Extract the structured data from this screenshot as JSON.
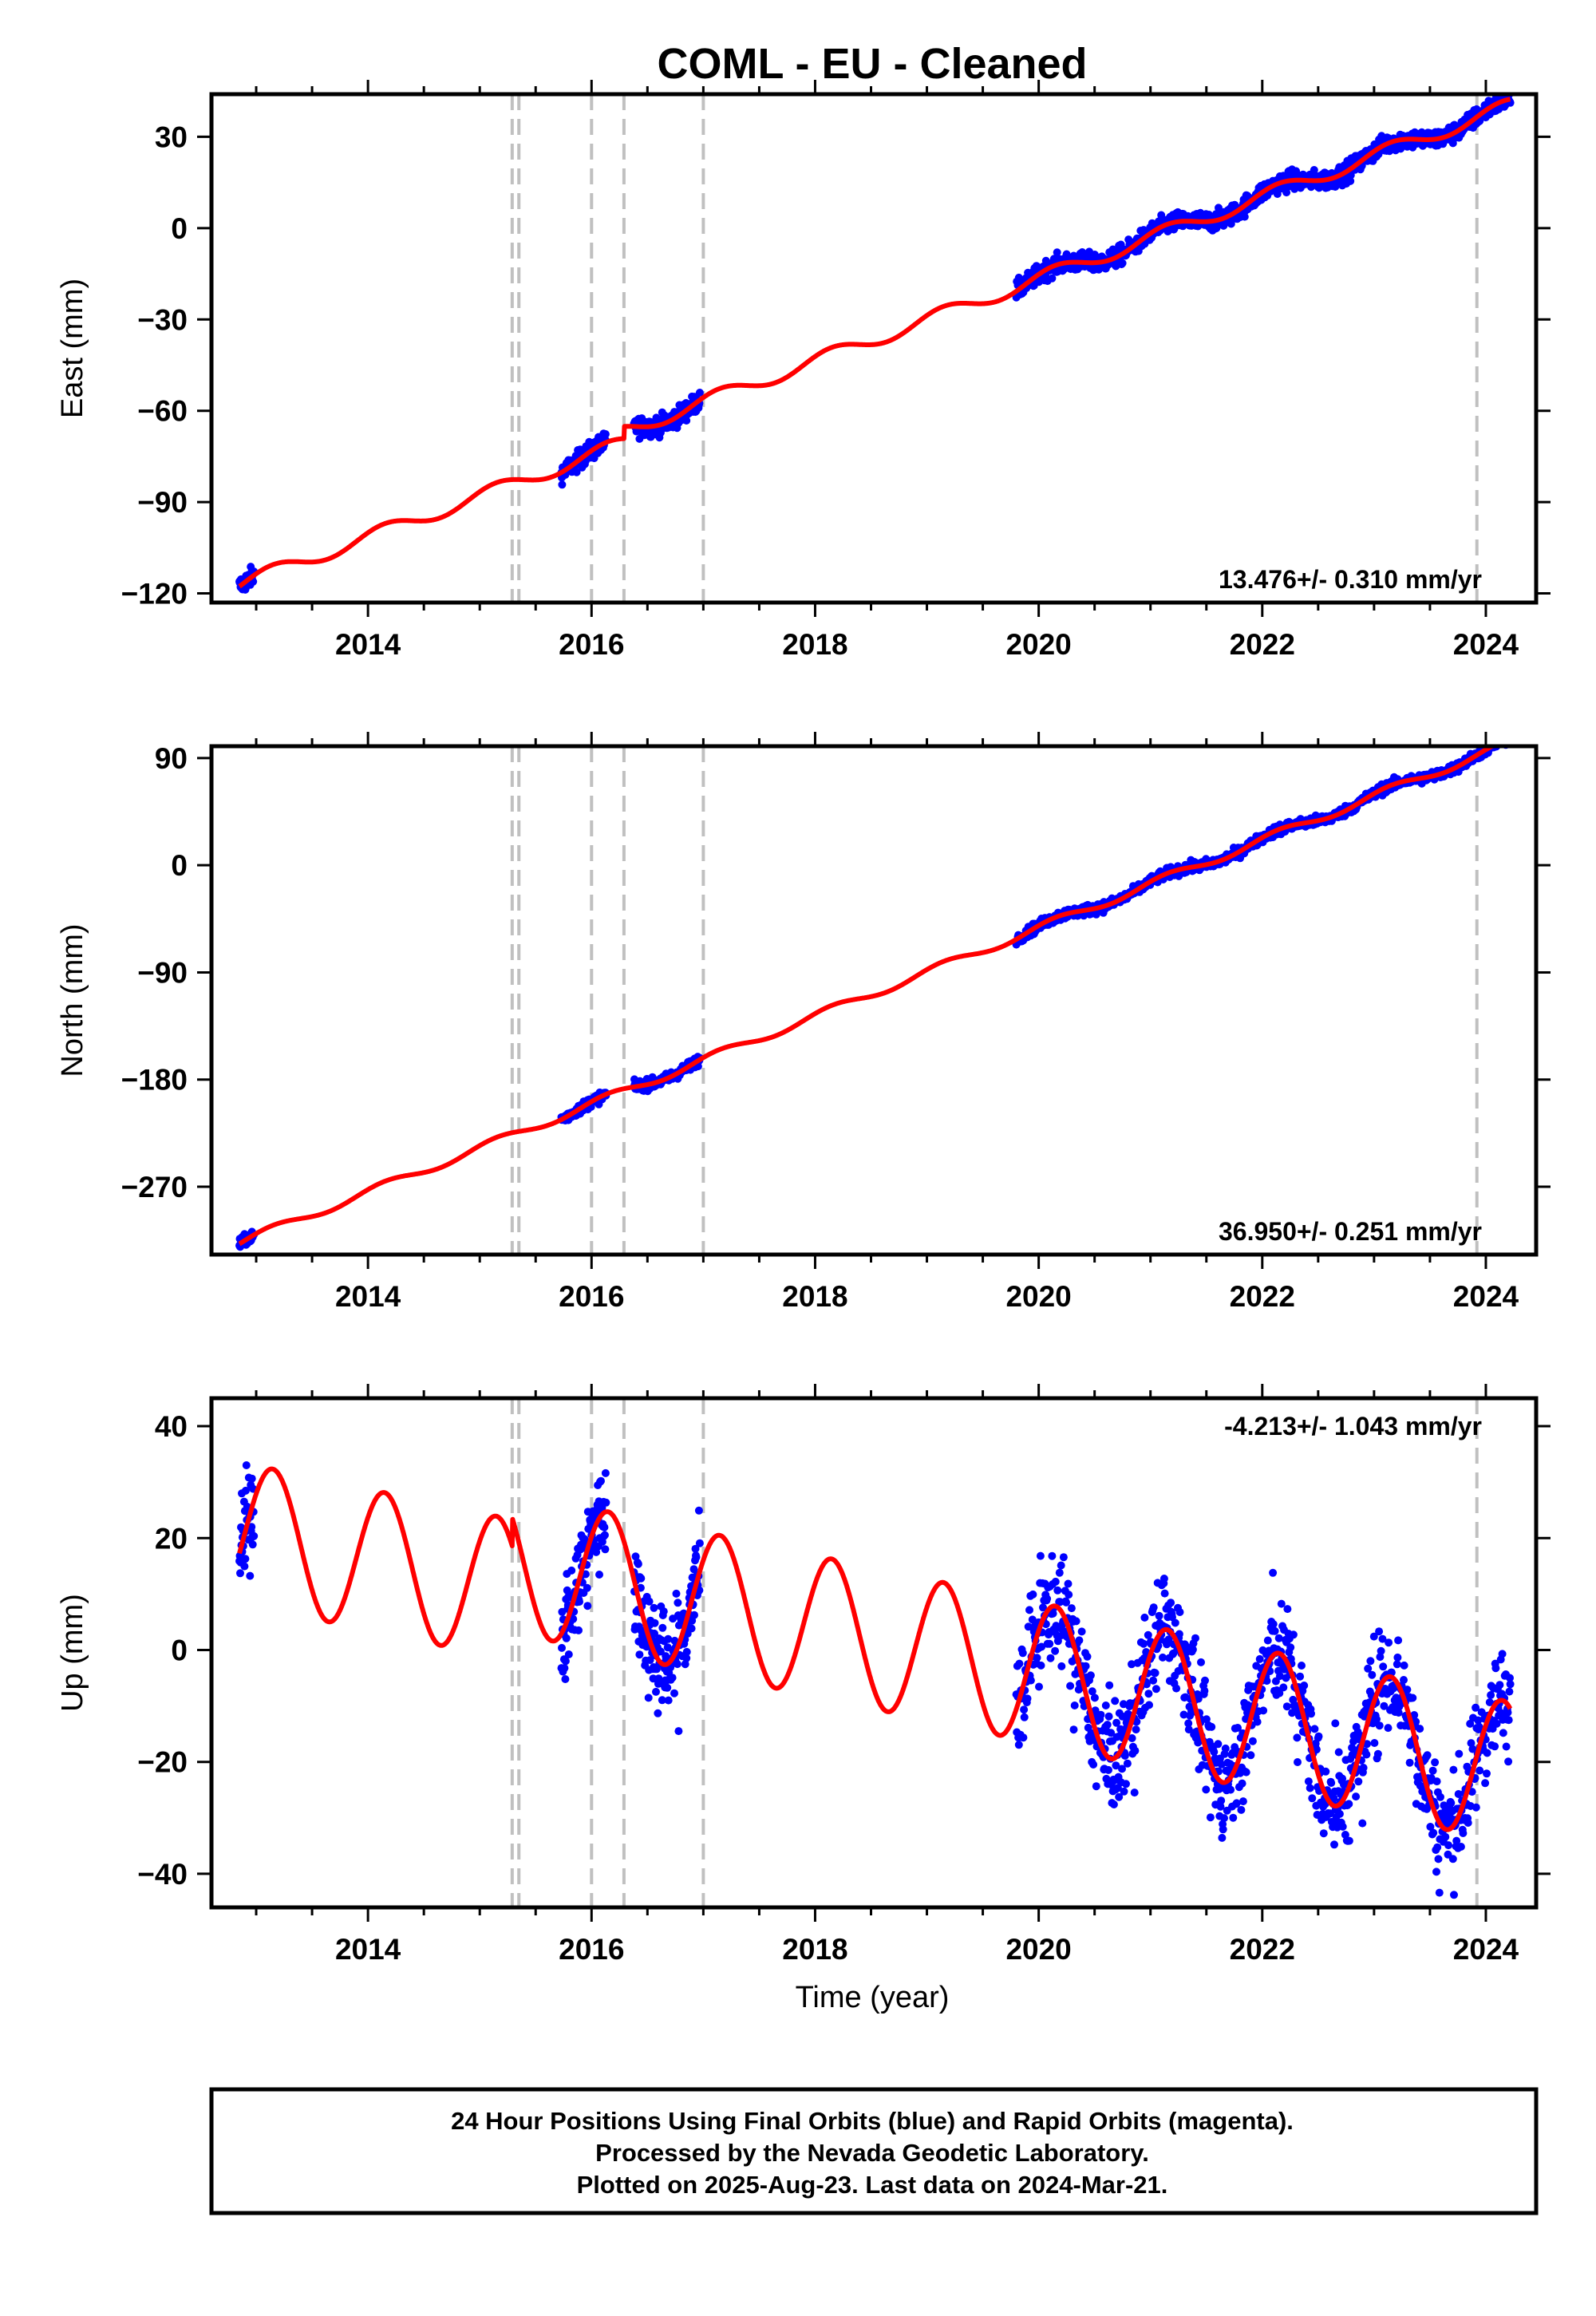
{
  "colors": {
    "data": "#0000ff",
    "model": "#ff0000",
    "breaks": "#c0c0c0",
    "frame": "#000000"
  },
  "chart_data": {
    "type": "scatter",
    "title": "COML  - EU - Cleaned",
    "xlabel": "Time (year)",
    "xlim": [
      2012.6,
      2024.45
    ],
    "xtick_labels": [
      "2014",
      "2016",
      "2018",
      "2020",
      "2022",
      "2024"
    ],
    "breaks": [
      2015.29,
      2015.35,
      2016.0,
      2016.29,
      2017.0,
      2023.92
    ],
    "data_segments": [
      [
        2012.85,
        2012.98
      ],
      [
        2015.73,
        2016.13
      ],
      [
        2016.38,
        2016.97
      ],
      [
        2019.8,
        2024.22
      ]
    ],
    "model_start": 2012.85,
    "model_end": 2024.22,
    "panels": [
      {
        "component": "east",
        "ylabel": "East (mm)",
        "ylim": [
          -123,
          44
        ],
        "yticks": [
          "30",
          "0",
          "-30",
          "-60",
          "-90",
          "-120"
        ],
        "rate": "13.476+/- 0.310 mm/yr",
        "rate_position": "bottom-right",
        "rate_mm_yr": 13.476,
        "offset_mm": -117,
        "seasonal_amplitude_mm": 2.4,
        "steps": [
          {
            "at": 2016.29,
            "mm": 4
          }
        ],
        "scatter_mm": 1.6
      },
      {
        "component": "north",
        "ylabel": "North (mm)",
        "ylim": [
          -327,
          100
        ],
        "yticks": [
          "90",
          "0",
          "-90",
          "-180",
          "-270"
        ],
        "rate": "36.950+/- 0.251 mm/yr",
        "rate_position": "bottom-right",
        "rate_mm_yr": 36.95,
        "offset_mm": -317,
        "seasonal_amplitude_mm": 3.5,
        "steps": [],
        "scatter_mm": 2.2
      },
      {
        "component": "up",
        "ylabel": "Up (mm)",
        "ylim": [
          -46,
          45
        ],
        "yticks": [
          "40",
          "20",
          "0",
          "-20",
          "-40"
        ],
        "rate": "-4.213+/- 1.043 mm/yr",
        "rate_position": "top-right",
        "rate_mm_yr": -4.213,
        "offset_mm": 21,
        "seasonal_amplitude_mm": 12.6,
        "steps": [
          {
            "at": 2015.29,
            "mm": 5
          }
        ],
        "scatter_mm": 4.6
      }
    ]
  },
  "footer": {
    "line1": "24 Hour Positions Using Final Orbits (blue) and Rapid Orbits (magenta).",
    "line2": "Processed by the Nevada Geodetic Laboratory.",
    "line3": "Plotted on 2025-Aug-23. Last data on 2024-Mar-21."
  }
}
